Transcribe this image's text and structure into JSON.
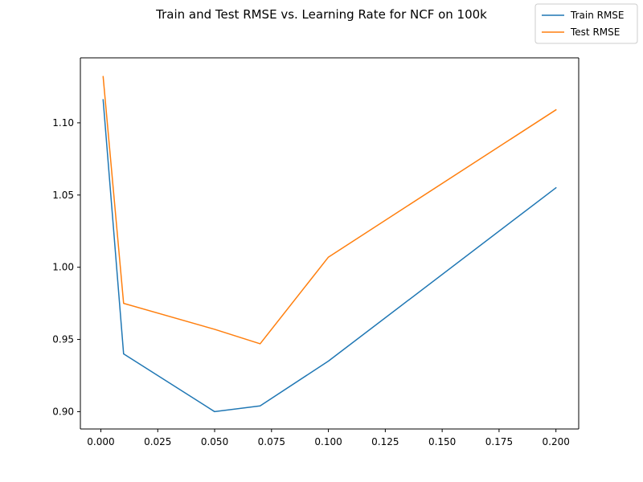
{
  "chart_data": {
    "type": "line",
    "title": "Train and Test RMSE vs. Learning Rate for NCF on 100k",
    "xlabel": "",
    "ylabel": "",
    "x": [
      0.001,
      0.01,
      0.05,
      0.07,
      0.1,
      0.2
    ],
    "series": [
      {
        "name": "Train RMSE",
        "color": "#1f77b4",
        "values": [
          1.116,
          0.94,
          0.9,
          0.904,
          0.935,
          1.055
        ]
      },
      {
        "name": "Test RMSE",
        "color": "#ff7f0e",
        "values": [
          1.132,
          0.975,
          0.957,
          0.947,
          1.007,
          1.109
        ]
      }
    ],
    "xlim": [
      -0.009,
      0.21
    ],
    "ylim": [
      0.888,
      1.145
    ],
    "xticks": [
      0.0,
      0.025,
      0.05,
      0.075,
      0.1,
      0.125,
      0.15,
      0.175,
      0.2
    ],
    "xtick_labels": [
      "0.000",
      "0.025",
      "0.050",
      "0.075",
      "0.100",
      "0.125",
      "0.150",
      "0.175",
      "0.200"
    ],
    "yticks": [
      0.9,
      0.95,
      1.0,
      1.05,
      1.1
    ],
    "ytick_labels": [
      "0.90",
      "0.95",
      "1.00",
      "1.05",
      "1.10"
    ],
    "grid": false,
    "legend_position": "top-right"
  }
}
